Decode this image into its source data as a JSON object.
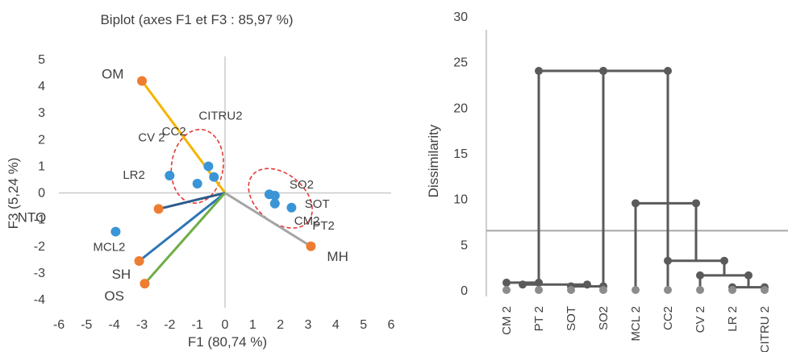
{
  "chart_data": [
    {
      "type": "scatter",
      "title": "Biplot (axes F1 et F3 : 85,97 %)",
      "xlabel": "F1 (80,74 %)",
      "ylabel": "F3 (5,24 %)",
      "xlim": [
        -6,
        6
      ],
      "ylim": [
        -4,
        5
      ],
      "xticks": [
        "-6",
        "-5",
        "-4",
        "-3",
        "-2",
        "-1",
        "0",
        "1",
        "2",
        "3",
        "4",
        "5",
        "6"
      ],
      "yticks": [
        "-4",
        "-3",
        "-2",
        "-1",
        "0",
        "1",
        "2",
        "3",
        "4",
        "5"
      ],
      "observations": [
        {
          "label": "CC2",
          "x": -1.0,
          "y": 0.35
        },
        {
          "label": "CITRU2",
          "x": -0.6,
          "y": 1.0
        },
        {
          "label": "CV 2",
          "x": -0.4,
          "y": 0.6
        },
        {
          "label": "LR2",
          "x": -2.0,
          "y": 0.65
        },
        {
          "label": "SO2",
          "x": 1.6,
          "y": -0.05
        },
        {
          "label": "SOT",
          "x": 1.8,
          "y": -0.1
        },
        {
          "label": "CM2",
          "x": 1.8,
          "y": -0.4
        },
        {
          "label": "PT2",
          "x": 2.4,
          "y": -0.55
        },
        {
          "label": "MCL2",
          "x": -3.95,
          "y": -1.45
        }
      ],
      "variables": [
        {
          "label": "OM",
          "x": -3.0,
          "y": 4.2,
          "color": "#f4b400"
        },
        {
          "label": "NTO",
          "x": -2.4,
          "y": -0.6,
          "color": "#2e5c8a"
        },
        {
          "label": "SH",
          "x": -3.1,
          "y": -2.55,
          "color": "#2e75b6"
        },
        {
          "label": "OS",
          "x": -2.9,
          "y": -3.4,
          "color": "#70ad47"
        },
        {
          "label": "MH",
          "x": 3.1,
          "y": -2.0,
          "color": "#a5a5a5"
        }
      ],
      "colors": {
        "observation": "#3a95d6",
        "variable_point": "#ed7d31",
        "ellipse": "#e53935",
        "axis": "#bfbfbf"
      }
    },
    {
      "type": "dendrogram",
      "ylabel": "Dissimilarity",
      "ylim": [
        0,
        30
      ],
      "yticks": [
        "0",
        "5",
        "10",
        "15",
        "20",
        "25",
        "30"
      ],
      "leaves": [
        "CM 2",
        "PT 2",
        "SOT",
        "SO2",
        "MCL 2",
        "CC2",
        "CV 2",
        "LR 2",
        "CITRU 2"
      ],
      "merges": [
        {
          "left": 7,
          "right": 8,
          "height": 0.3
        },
        {
          "left": 2,
          "right": 3,
          "height": 0.4
        },
        {
          "left": 0,
          "right": 1,
          "height": 0.8
        },
        {
          "leftCluster": 6,
          "rightCluster": "LR2-CITRU2",
          "height": 1.6
        },
        {
          "leftCluster": "CM2-PT2",
          "rightCluster": "SOT-SO2",
          "height": 0.6
        },
        {
          "leftCluster": "CV2-LR2-CITRU2",
          "rightCluster": 5,
          "height": 3.2
        },
        {
          "leftCluster": "CC2-group",
          "rightCluster": 4,
          "height": 9.5
        },
        {
          "leftCluster": "CM2-SO2",
          "rightCluster": "MCL2-CC2-group",
          "height": 24
        }
      ],
      "cut_height": 6.5,
      "colors": {
        "link": "#5a5a5a",
        "leaf": "#8c8c8c",
        "cut_line": "#a6a6a6"
      }
    }
  ]
}
